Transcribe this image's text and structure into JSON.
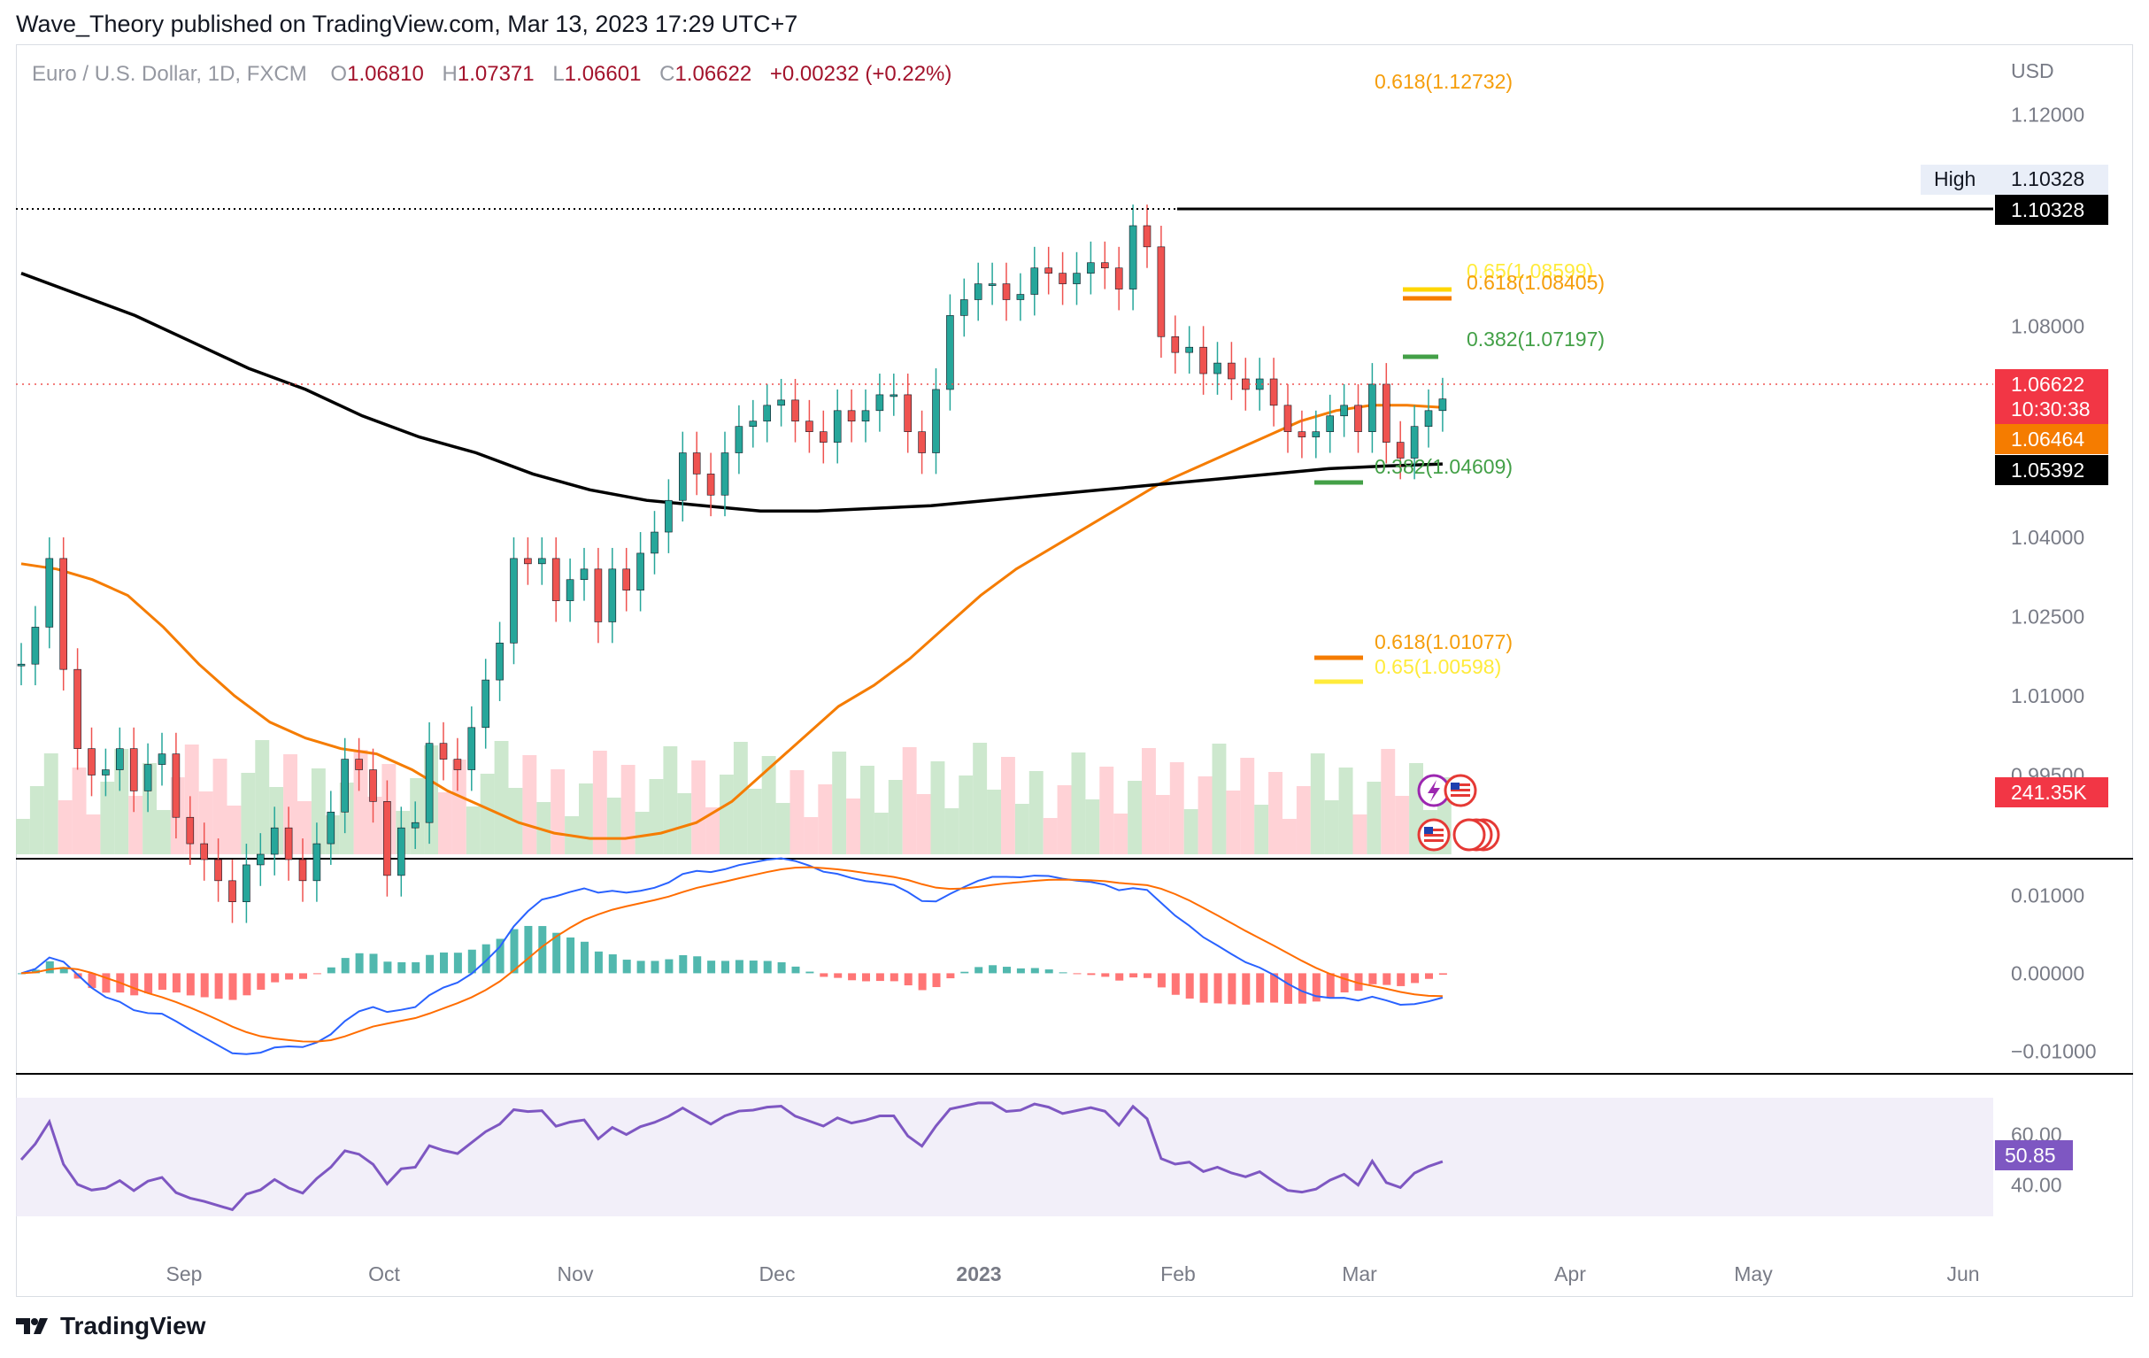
{
  "header": {
    "published": "Wave_Theory published on TradingView.com, Mar 13, 2023 17:29 UTC+7"
  },
  "legend": {
    "symbol": "Euro / U.S. Dollar, 1D, FXCM",
    "open_label": "O",
    "open": "1.06810",
    "high_label": "H",
    "high": "1.07371",
    "low_label": "L",
    "low": "1.06601",
    "close_label": "C",
    "close": "1.06622",
    "change": "+0.00232 (+0.22%)"
  },
  "currency": "USD",
  "price_axis_ticks": [
    "1.12000",
    "1.08000",
    "1.04000",
    "1.02500",
    "1.01000",
    "0.99500"
  ],
  "macd_axis_ticks": [
    "0.01000",
    "0.00000",
    "−0.01000"
  ],
  "rsi_axis_ticks": [
    "60.00",
    "40.00"
  ],
  "time_axis": [
    "Sep",
    "Oct",
    "Nov",
    "Dec",
    "2023",
    "Feb",
    "Mar",
    "Apr",
    "May",
    "Jun"
  ],
  "labels_right": {
    "high_tag": "High",
    "high_value": "1.10328",
    "high_line": "1.10328",
    "last_price": "1.06622",
    "countdown": "10:30:38",
    "ema50": "1.06464",
    "ema200": "1.05392",
    "volume": "241.35K",
    "rsi": "50.85"
  },
  "fib_labels": {
    "f1": "0.618(1.12732)",
    "f2": "0.65(1.08599)",
    "f3": "0.618(1.08405)",
    "f4": "0.382(1.07197)",
    "f5": "0.382(1.04609)",
    "f6": "0.618(1.01077)",
    "f7": "0.65(1.00598)"
  },
  "colors": {
    "up": "#26a69a",
    "down": "#ef5350",
    "ema50": "#f57c00",
    "ema200": "#000000",
    "macd": "#2962ff",
    "signal": "#ff6d00",
    "rsi": "#7e57c2"
  },
  "footer": {
    "brand": "TradingView"
  },
  "chart_data": {
    "type": "line",
    "series": [
      {
        "values": [
          1.016,
          1.023,
          1.036,
          1.015,
          1.0,
          0.995,
          0.996,
          1.0,
          0.992,
          0.997,
          0.999,
          0.987,
          0.982,
          0.979,
          0.975,
          0.971,
          0.978,
          0.98,
          0.985,
          0.979,
          0.975,
          0.982,
          0.988,
          0.998,
          0.996,
          0.99,
          0.976,
          0.985,
          0.986,
          1.001,
          0.998,
          0.996,
          1.004,
          1.013,
          1.02,
          1.036,
          1.035,
          1.036,
          1.028,
          1.032,
          1.034,
          1.024,
          1.034,
          1.03,
          1.037,
          1.041,
          1.047,
          1.056,
          1.052,
          1.048,
          1.056,
          1.061,
          1.062,
          1.065,
          1.066,
          1.062,
          1.06,
          1.058,
          1.064,
          1.062,
          1.064,
          1.067,
          1.067,
          1.06,
          1.056,
          1.068,
          1.082,
          1.085,
          1.088,
          1.088,
          1.085,
          1.086,
          1.091,
          1.09,
          1.088,
          1.09,
          1.092,
          1.091,
          1.087,
          1.099,
          1.095,
          1.078,
          1.075,
          1.076,
          1.071,
          1.073,
          1.07,
          1.068,
          1.07,
          1.065,
          1.06,
          1.059,
          1.06,
          1.063,
          1.065,
          1.06,
          1.069,
          1.058,
          1.055,
          1.061,
          1.064,
          1.0662
        ]
      },
      {
        "values": [
          1.035,
          1.034,
          1.032,
          1.029,
          1.023,
          1.016,
          1.01,
          1.005,
          1.002,
          1.0,
          0.999,
          0.996,
          0.992,
          0.989,
          0.986,
          0.984,
          0.983,
          0.983,
          0.984,
          0.986,
          0.99,
          0.996,
          1.002,
          1.008,
          1.012,
          1.017,
          1.023,
          1.029,
          1.034,
          1.038,
          1.042,
          1.046,
          1.05,
          1.053,
          1.056,
          1.059,
          1.062,
          1.064,
          1.065,
          1.065,
          1.0646
        ]
      },
      {
        "values": [
          1.09,
          1.086,
          1.082,
          1.077,
          1.072,
          1.068,
          1.063,
          1.059,
          1.056,
          1.052,
          1.049,
          1.047,
          1.046,
          1.045,
          1.045,
          1.0455,
          1.046,
          1.047,
          1.048,
          1.049,
          1.05,
          1.051,
          1.052,
          1.053,
          1.0535,
          1.0539
        ]
      }
    ],
    "ylim": [
      0.98,
      1.13
    ],
    "macd_ylim": [
      -0.012,
      0.013
    ],
    "rsi_ylim": [
      20,
      80
    ]
  }
}
